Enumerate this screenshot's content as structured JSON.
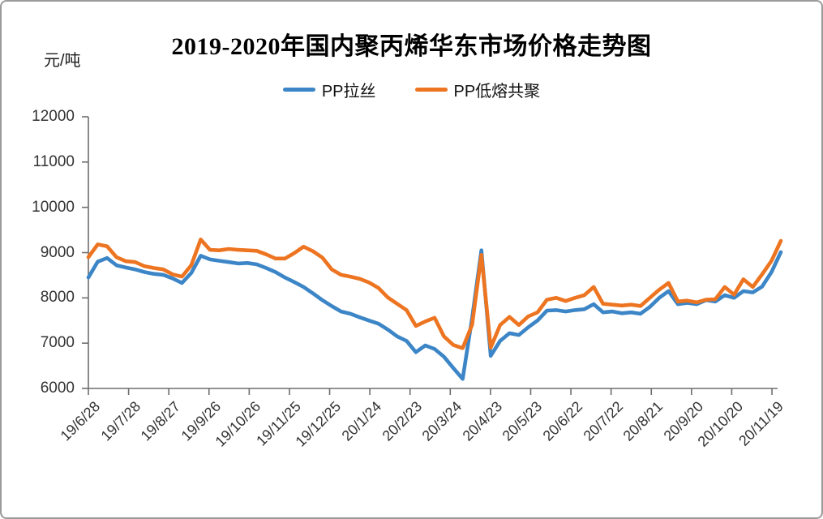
{
  "chart_data": {
    "type": "line",
    "title": "2019-2020年国内聚丙烯华东市场价格走势图",
    "y_axis": {
      "unit": "元/吨",
      "min": 6000,
      "max": 12000,
      "tick_interval": 1000,
      "tick_labels": [
        "12000",
        "11000",
        "10000",
        "9000",
        "8000",
        "7000",
        "6000"
      ]
    },
    "x_axis": {
      "tick_labels": [
        "19/6/28",
        "19/7/28",
        "19/8/27",
        "19/9/26",
        "19/10/26",
        "19/11/25",
        "19/12/25",
        "20/1/24",
        "20/2/23",
        "20/3/24",
        "20/4/23",
        "20/5/23",
        "20/6/22",
        "20/7/22",
        "20/8/21",
        "20/9/20",
        "20/10/20",
        "20/11/19"
      ],
      "label_rotation_deg": -45
    },
    "legend": [
      {
        "name": "PP拉丝",
        "color": "#3C85C6"
      },
      {
        "name": "PP低熔共聚",
        "color": "#ED7420"
      }
    ],
    "grid": "off",
    "legend_position": "top-center",
    "sampling": "approx weekly points, 19/6/28 through ~20/11/27 (values in 元/吨, read from plot)",
    "series": [
      {
        "name": "PP拉丝",
        "color": "#3C85C6",
        "values": [
          8450,
          8800,
          8880,
          8720,
          8670,
          8630,
          8570,
          8530,
          8510,
          8430,
          8330,
          8550,
          8930,
          8850,
          8820,
          8790,
          8760,
          8770,
          8740,
          8660,
          8570,
          8450,
          8350,
          8240,
          8100,
          7950,
          7820,
          7700,
          7650,
          7570,
          7500,
          7430,
          7300,
          7150,
          7050,
          6800,
          6950,
          6870,
          6700,
          6450,
          6210,
          7550,
          9050,
          6720,
          7050,
          7220,
          7180,
          7350,
          7500,
          7720,
          7730,
          7700,
          7730,
          7750,
          7860,
          7680,
          7700,
          7660,
          7680,
          7650,
          7800,
          8000,
          8150,
          7860,
          7890,
          7860,
          7950,
          7920,
          8060,
          8000,
          8150,
          8120,
          8250,
          8570,
          9010
        ]
      },
      {
        "name": "PP低熔共聚",
        "color": "#ED7420",
        "values": [
          8900,
          9180,
          9140,
          8900,
          8810,
          8790,
          8700,
          8660,
          8630,
          8520,
          8470,
          8720,
          9290,
          9060,
          9050,
          9080,
          9060,
          9050,
          9040,
          8960,
          8870,
          8870,
          8990,
          9130,
          9030,
          8890,
          8630,
          8510,
          8470,
          8420,
          8340,
          8220,
          8010,
          7870,
          7730,
          7380,
          7480,
          7560,
          7150,
          6960,
          6890,
          7400,
          8950,
          6900,
          7400,
          7580,
          7400,
          7590,
          7680,
          7960,
          8000,
          7930,
          8000,
          8060,
          8240,
          7870,
          7850,
          7830,
          7850,
          7820,
          8000,
          8180,
          8330,
          7920,
          7940,
          7900,
          7960,
          7970,
          8240,
          8070,
          8410,
          8240,
          8520,
          8820,
          9260
        ]
      }
    ]
  }
}
